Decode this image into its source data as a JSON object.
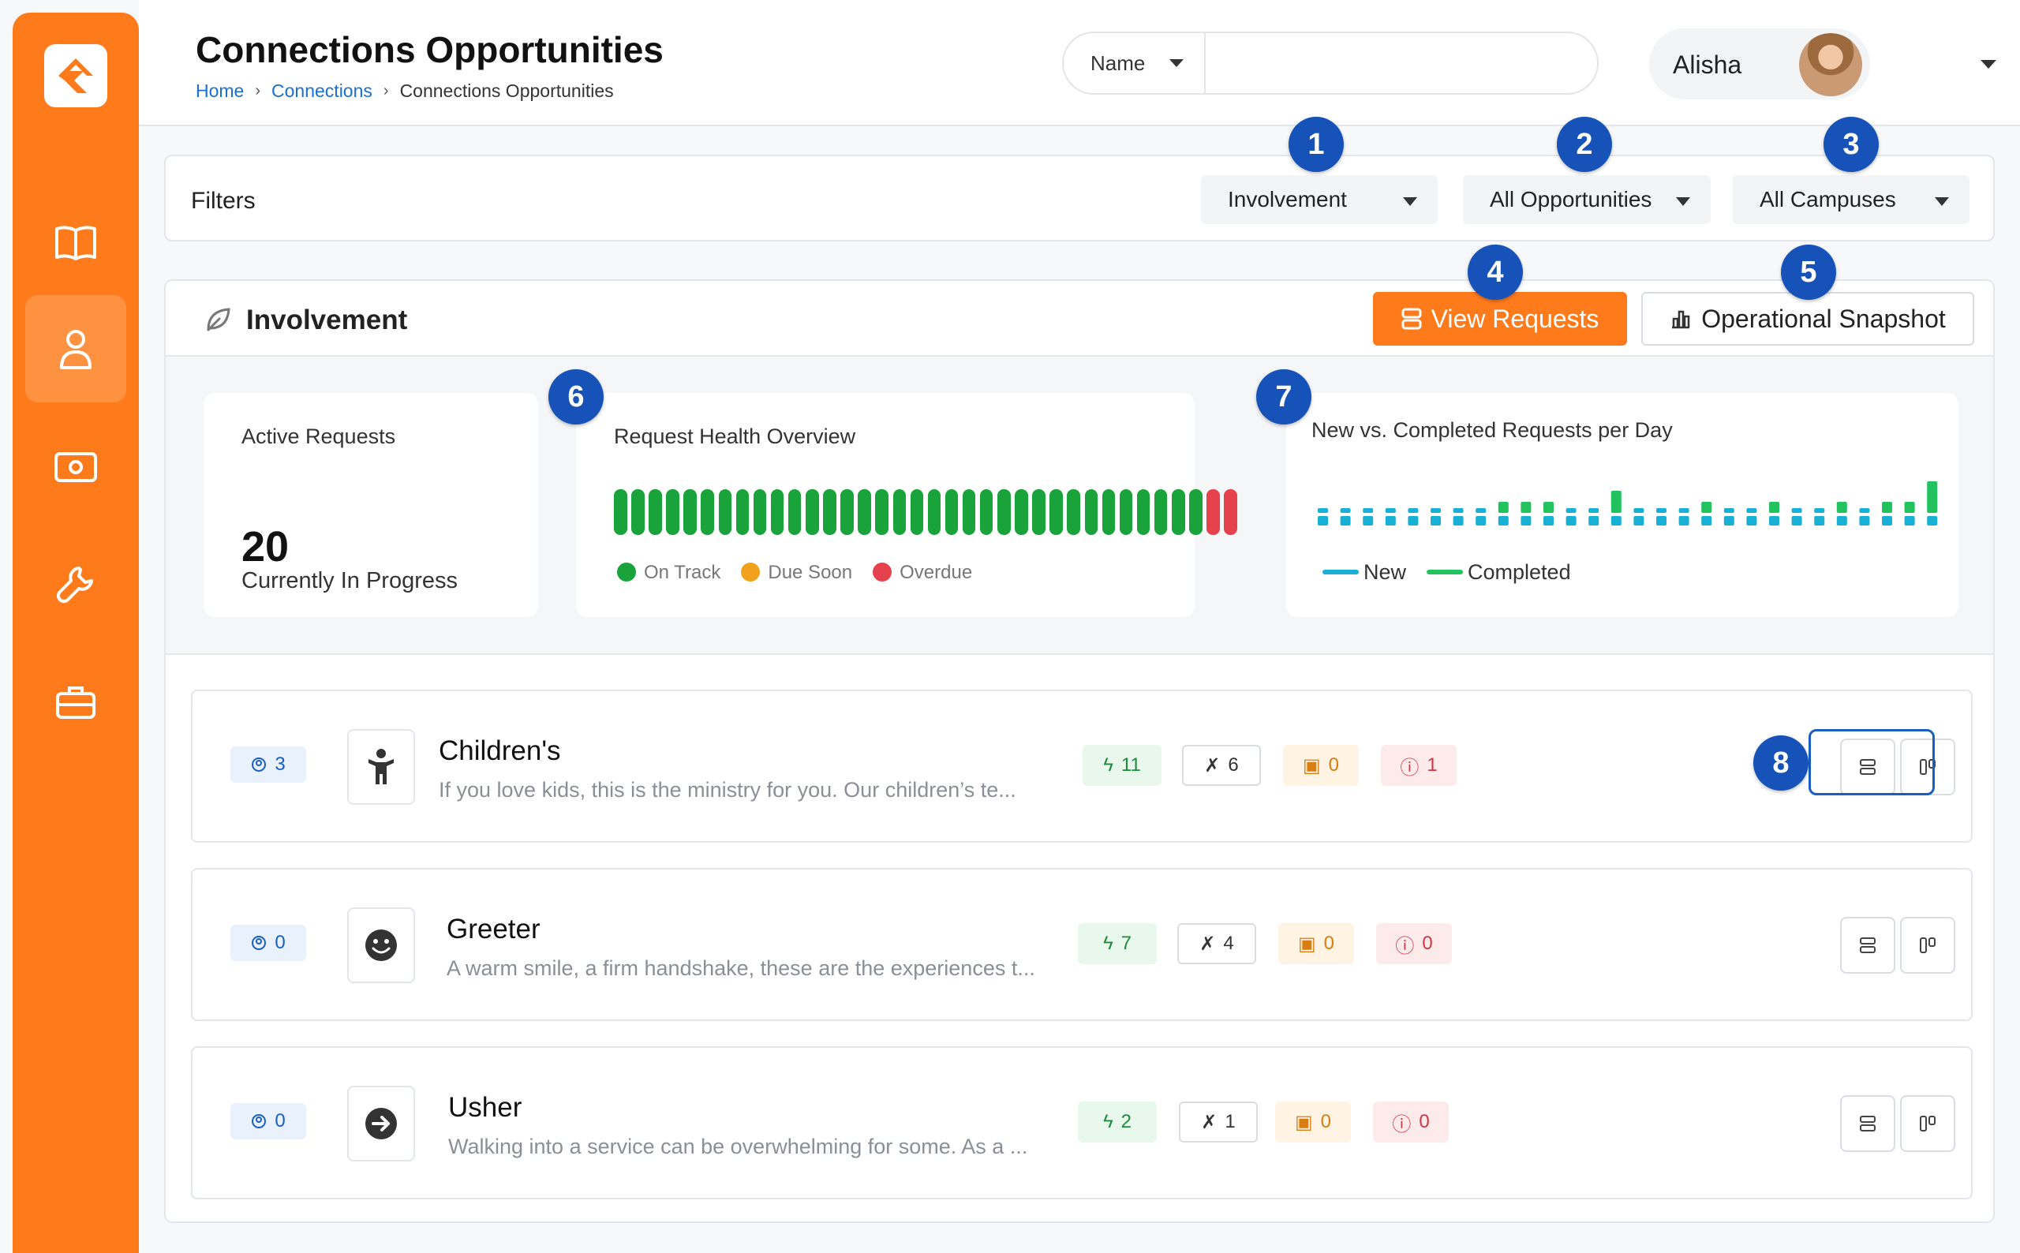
{
  "header": {
    "title": "Connections Opportunities",
    "breadcrumb": [
      "Home",
      "Connections",
      "Connections Opportunities"
    ],
    "search_type": "Name",
    "search_placeholder": "",
    "user_name": "Alisha"
  },
  "filters": {
    "title": "Filters",
    "involvement": "Involvement",
    "opportunities": "All Opportunities",
    "campuses": "All Campuses"
  },
  "panel": {
    "title": "Involvement",
    "view_requests": "View Requests",
    "operational_snapshot": "Operational Snapshot"
  },
  "stats": {
    "active_label": "Active Requests",
    "active_value": "20",
    "active_sub": "Currently In Progress",
    "health_title": "Request Health Overview",
    "health_counts": {
      "on_track": 34,
      "due_soon": 0,
      "overdue": 2
    },
    "health_legend": [
      "On Track",
      "Due Soon",
      "Overdue"
    ],
    "trend_title": "New vs. Completed Requests per Day",
    "trend_legend": [
      "New",
      "Completed"
    ]
  },
  "colors": {
    "brand": "#ff7a1a",
    "on_track": "#1aa33a",
    "due_soon": "#f2a11c",
    "overdue": "#e5424d",
    "new": "#19b0d6",
    "completed": "#22c35e",
    "marker": "#1652b8"
  },
  "rows": [
    {
      "count": "3",
      "icon": "child-icon",
      "title": "Children's",
      "desc": "If you love kids, this is the ministry for you. Our children’s te...",
      "active": "11",
      "unassigned": "6",
      "due": "0",
      "overdue": "1"
    },
    {
      "count": "0",
      "icon": "smile-icon",
      "title": "Greeter",
      "desc": "A warm smile, a firm handshake, these are the experiences t...",
      "active": "7",
      "unassigned": "4",
      "due": "0",
      "overdue": "0"
    },
    {
      "count": "0",
      "icon": "arrow-right-circle-icon",
      "title": "Usher",
      "desc": "Walking into a service can be overwhelming for some. As a ...",
      "active": "2",
      "unassigned": "1",
      "due": "0",
      "overdue": "0"
    }
  ],
  "markers": [
    "1",
    "2",
    "3",
    "4",
    "5",
    "6",
    "7",
    "8"
  ]
}
